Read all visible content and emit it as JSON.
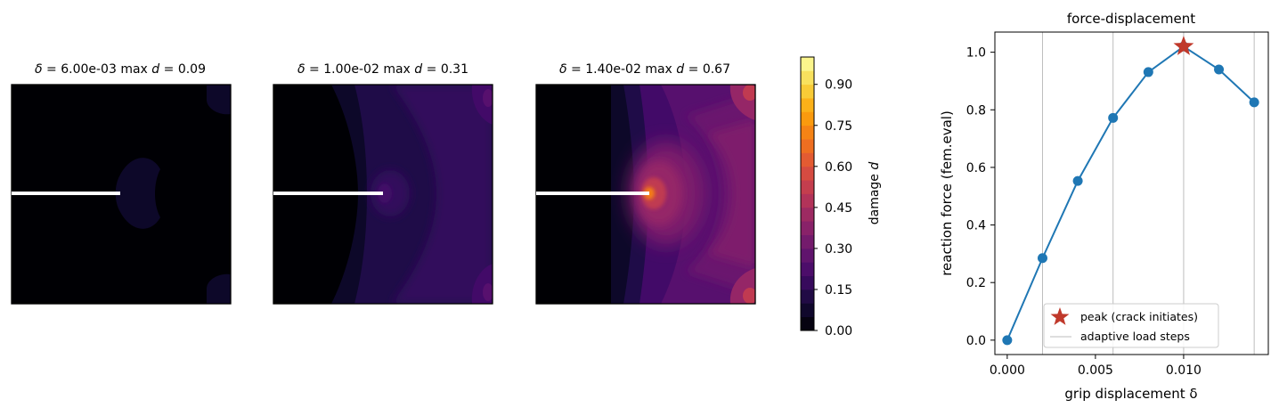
{
  "panels": [
    {
      "delta_label": "6.00e-03",
      "maxd_label": "0.09",
      "delta": 0.006,
      "max_d": 0.09
    },
    {
      "delta_label": "1.00e-02",
      "maxd_label": "0.31",
      "delta": 0.01,
      "max_d": 0.31
    },
    {
      "delta_label": "1.40e-02",
      "maxd_label": "0.67",
      "delta": 0.014,
      "max_d": 0.67
    }
  ],
  "panel_text": {
    "delta_symbol": "δ",
    "equals": " = ",
    "max_prefix": "max ",
    "d_symbol": "d"
  },
  "colorbar": {
    "label_prefix": "damage ",
    "label_symbol": "d",
    "ticks": [
      "0.00",
      "0.15",
      "0.30",
      "0.45",
      "0.60",
      "0.75",
      "0.90"
    ],
    "tick_values": [
      0,
      0.15,
      0.3,
      0.45,
      0.6,
      0.75,
      0.9
    ],
    "range": [
      0,
      1
    ],
    "levels": 20,
    "colormap": "inferno"
  },
  "chart_data": {
    "type": "line",
    "title": "force-displacement",
    "xlabel": "grip displacement  δ",
    "ylabel": "reaction force  (fem.eval)",
    "xlim": [
      -0.0007,
      0.0148
    ],
    "ylim": [
      -0.05,
      1.07
    ],
    "xticks": [
      "0.000",
      "0.005",
      "0.010"
    ],
    "xtick_values": [
      0,
      0.005,
      0.01
    ],
    "yticks": [
      "0.0",
      "0.2",
      "0.4",
      "0.6",
      "0.8",
      "1.0"
    ],
    "ytick_values": [
      0,
      0.2,
      0.4,
      0.6,
      0.8,
      1.0
    ],
    "series": [
      {
        "x": [
          0,
          0.002,
          0.004,
          0.006,
          0.008,
          0.01,
          0.012,
          0.014
        ],
        "y": [
          0.0,
          0.285,
          0.553,
          0.772,
          0.931,
          1.02,
          0.94,
          0.826
        ],
        "color": "#1f77b4"
      }
    ],
    "peak": {
      "x": 0.01,
      "y": 1.02,
      "label": "peak (crack initiates)",
      "color": "#c0392b"
    },
    "load_steps": {
      "x": [
        0.002,
        0.006,
        0.01,
        0.014
      ],
      "label": "adaptive load steps",
      "color": "#bdbdbd"
    },
    "legend_position": "lower center"
  }
}
